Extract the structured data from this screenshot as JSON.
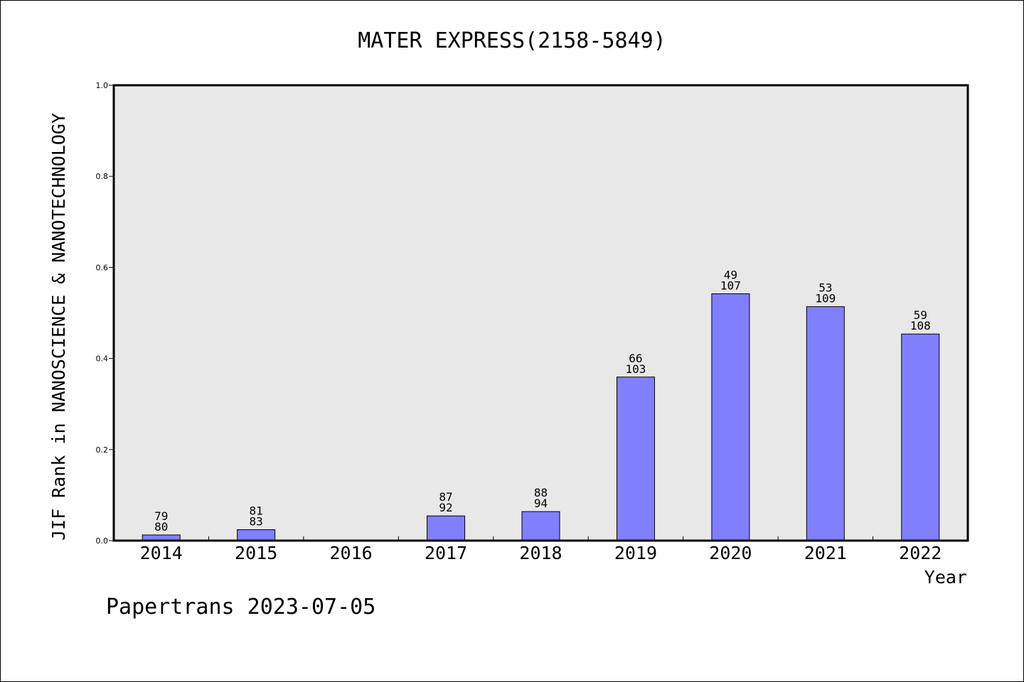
{
  "footer": "Papertrans 2023-07-05",
  "chart_data": {
    "type": "bar",
    "title": "MATER EXPRESS(2158-5849)",
    "xlabel": "Year",
    "ylabel": "JIF Rank in NANOSCIENCE & NANOTECHNOLOGY",
    "ylim": [
      0,
      1.0
    ],
    "yticks": [
      "0.0",
      "0.2",
      "0.4",
      "0.6",
      "0.8",
      "1.0"
    ],
    "grid": false,
    "background": "#e8e8e8",
    "bar_color": "#8080ff",
    "categories": [
      "2014",
      "2015",
      "2016",
      "2017",
      "2018",
      "2019",
      "2020",
      "2021",
      "2022"
    ],
    "values": [
      0.0125,
      0.0241,
      null,
      0.0543,
      0.0638,
      0.3592,
      0.5421,
      0.5138,
      0.4537
    ],
    "labels": [
      [
        "79",
        "80"
      ],
      [
        "81",
        "83"
      ],
      null,
      [
        "87",
        "92"
      ],
      [
        "88",
        "94"
      ],
      [
        "66",
        "103"
      ],
      [
        "49",
        "107"
      ],
      [
        "53",
        "109"
      ],
      [
        "59",
        "108"
      ]
    ]
  }
}
